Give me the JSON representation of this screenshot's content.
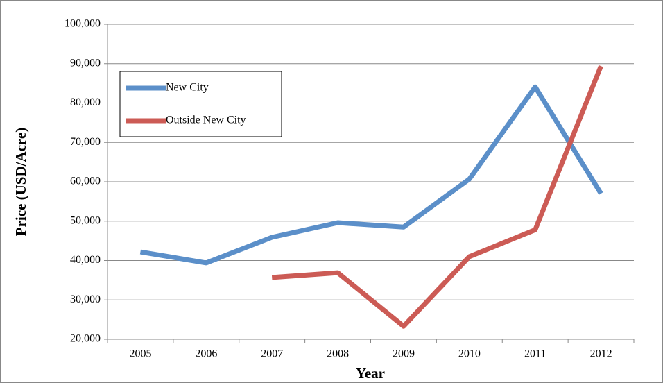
{
  "chart_data": {
    "type": "line",
    "x_label": "Year",
    "y_label": "Price (USD/Acre)",
    "categories": [
      "2005",
      "2006",
      "2007",
      "2008",
      "2009",
      "2010",
      "2011",
      "2012"
    ],
    "series": [
      {
        "name": "New City",
        "color": "#5b8fc9",
        "values": [
          42200,
          39400,
          45900,
          49600,
          48500,
          60700,
          84100,
          57000
        ]
      },
      {
        "name": "Outside New City",
        "color": "#cc5b55",
        "values": [
          null,
          null,
          35700,
          36900,
          23300,
          41000,
          47800,
          89400
        ]
      }
    ],
    "ylim": [
      20000,
      100000
    ],
    "yticks": [
      {
        "value": 20000,
        "label": "20,000"
      },
      {
        "value": 30000,
        "label": "30,000"
      },
      {
        "value": 40000,
        "label": "40,000"
      },
      {
        "value": 50000,
        "label": "50,000"
      },
      {
        "value": 60000,
        "label": "60,000"
      },
      {
        "value": 70000,
        "label": "70,000"
      },
      {
        "value": 80000,
        "label": "80,000"
      },
      {
        "value": 90000,
        "label": "90,000"
      },
      {
        "value": 100000,
        "label": "100,000"
      }
    ],
    "grid": true,
    "legend": "upper left"
  }
}
